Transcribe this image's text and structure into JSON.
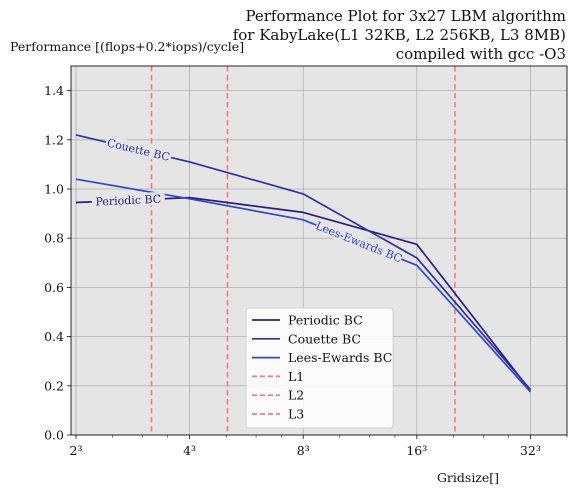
{
  "chart_data": {
    "type": "line",
    "title_lines": [
      "Performance Plot for 3x27 LBM algorithm",
      "for KabyLake(L1 32KB, L2 256KB, L3 8MB)",
      "compiled with gcc -O3"
    ],
    "ylabel": "Performance [(flops+0.2*iops)/cycle]",
    "xlabel": "Gridsize[]",
    "xscale": "log2",
    "x_tick_labels": [
      "2³",
      "4³",
      "8³",
      "16³",
      "32³"
    ],
    "x_tick_values": [
      2,
      4,
      8,
      16,
      32
    ],
    "xlim": [
      1.94,
      40
    ],
    "ylim": [
      0,
      1.5
    ],
    "y_ticks": [
      0.0,
      0.2,
      0.4,
      0.6,
      0.8,
      1.0,
      1.2,
      1.4
    ],
    "y_tick_labels": [
      "0.0",
      "0.2",
      "0.4",
      "0.6",
      "0.8",
      "1.0",
      "1.2",
      "1.4"
    ],
    "grid": true,
    "legend_position": "lower-center",
    "series": [
      {
        "name": "Periodic BC",
        "color": "#2a1f7a",
        "x": [
          2,
          4,
          8,
          16,
          32
        ],
        "y": [
          0.945,
          0.965,
          0.905,
          0.775,
          0.18
        ],
        "inline_label": "Periodic BC"
      },
      {
        "name": "Couette BC",
        "color": "#30319a",
        "x": [
          2,
          4,
          8,
          16,
          32
        ],
        "y": [
          1.22,
          1.11,
          0.98,
          0.72,
          0.185
        ],
        "inline_label": "Couette BC"
      },
      {
        "name": "Lees-Ewards BC",
        "color": "#3049c4",
        "x": [
          2,
          4,
          8,
          16,
          32
        ],
        "y": [
          1.04,
          0.96,
          0.875,
          0.69,
          0.175
        ],
        "inline_label": "Lees-Ewards BC"
      }
    ],
    "cache_lines": [
      {
        "name": "L1",
        "x": 3.17,
        "color": "#f27a8a"
      },
      {
        "name": "L2",
        "x": 5.04,
        "color": "#f27a8a"
      },
      {
        "name": "L3",
        "x": 20.2,
        "color": "#f27a8a"
      }
    ],
    "colors": {
      "plot_background": "#e5e5e5",
      "grid": "#b0b0b0"
    }
  }
}
